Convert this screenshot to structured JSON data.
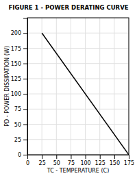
{
  "chart_data": {
    "type": "line",
    "title": "FIGURE 1 - POWER DERATING CURVE",
    "xlabel": "TC - TEMPERATURE (C)",
    "ylabel": "PD - POWER DISSIPATION (W)",
    "x": [
      25,
      175
    ],
    "values": [
      200,
      0
    ],
    "color": "#000000",
    "xlim": [
      0,
      175
    ],
    "ylim": [
      0,
      225
    ],
    "xticks": [
      0,
      25,
      50,
      75,
      100,
      125,
      150,
      175
    ],
    "yticks": [
      0,
      25,
      50,
      75,
      100,
      125,
      150,
      175,
      200
    ],
    "grid": true
  }
}
